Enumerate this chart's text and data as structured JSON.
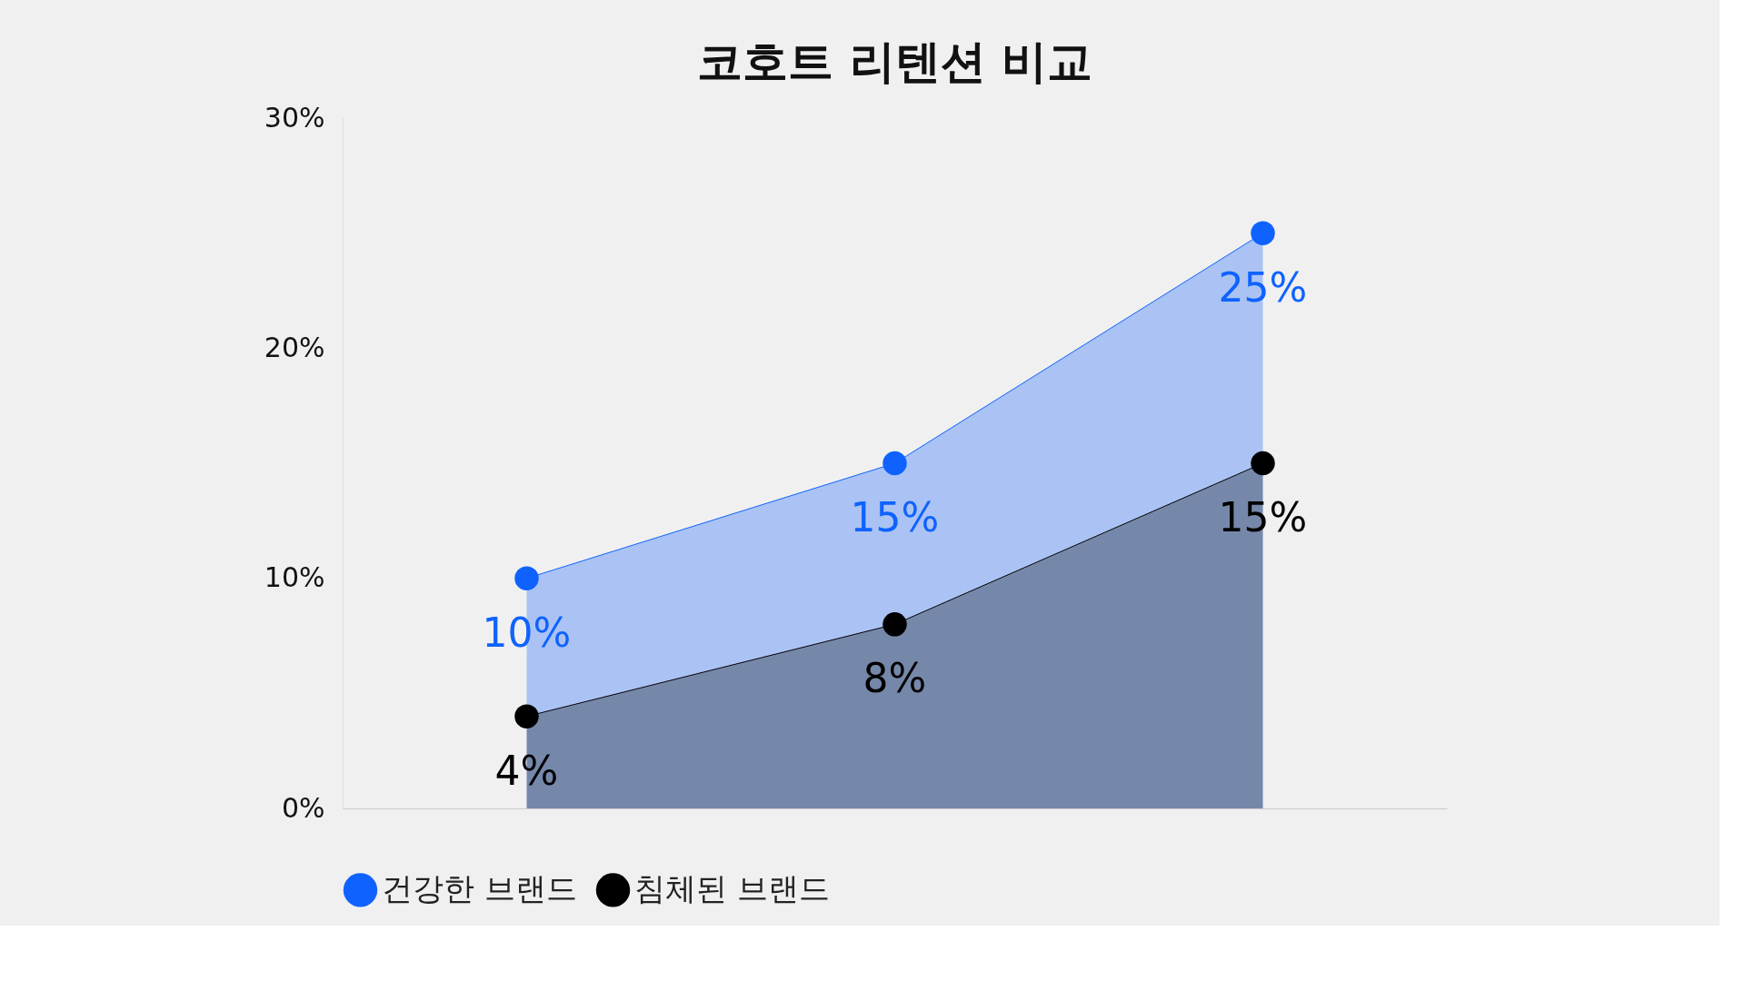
{
  "chart_data": {
    "type": "area",
    "title": "코호트 리텐션 비교",
    "categories": [
      null,
      null,
      null
    ],
    "series": [
      {
        "name": "건강한 브랜드",
        "color": "#0f62fe",
        "values": [
          10,
          15,
          25
        ],
        "value_labels": [
          "10%",
          "15%",
          "25%"
        ]
      },
      {
        "name": "침체된 브랜드",
        "color": "#000000",
        "values": [
          4,
          8,
          15
        ],
        "value_labels": [
          "4%",
          "8%",
          "15%"
        ]
      }
    ],
    "ylim": [
      0,
      30
    ],
    "yticks": [
      {
        "value": 0,
        "label": "0%"
      },
      {
        "value": 10,
        "label": "10%"
      },
      {
        "value": 20,
        "label": "20%"
      },
      {
        "value": 30,
        "label": "30%"
      }
    ],
    "tick_labels": "y",
    "grid": false,
    "legend": "bottom",
    "marker": "circle",
    "line_style": "solid"
  }
}
